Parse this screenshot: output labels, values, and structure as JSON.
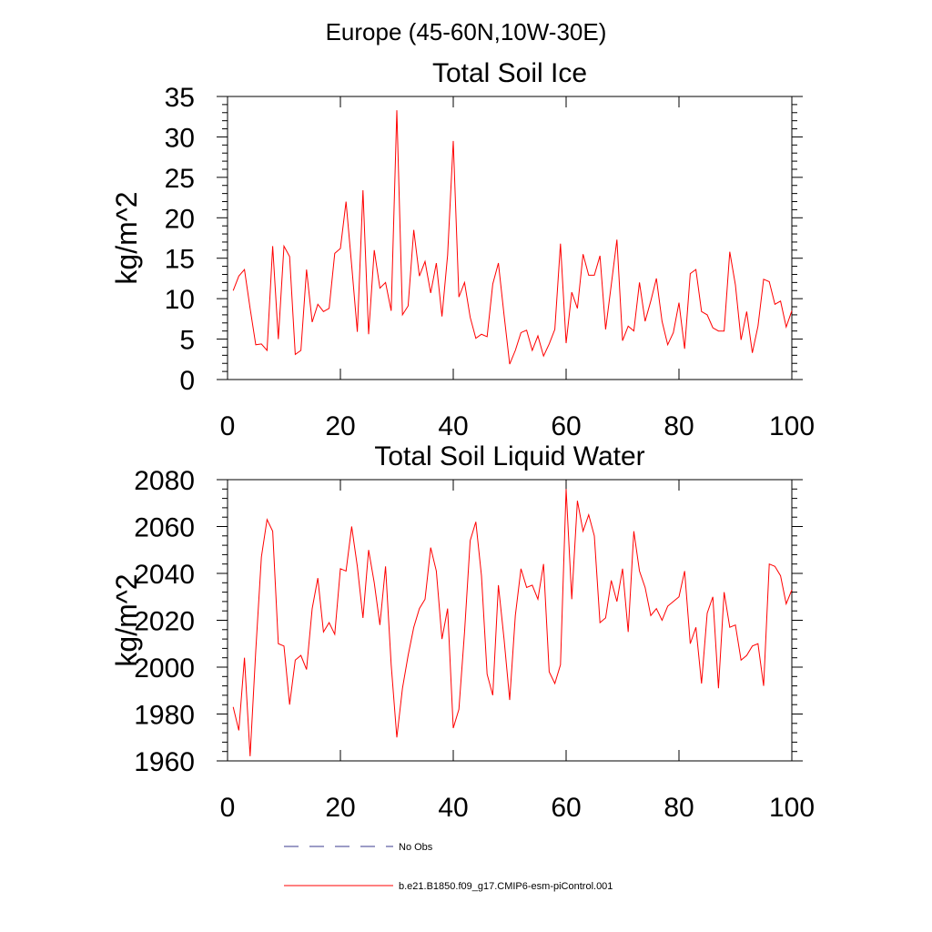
{
  "figure": {
    "suptitle": "Europe (45-60N,10W-30E)"
  },
  "colors": {
    "model": "#ff0000",
    "obs": "#3a3a8c",
    "axis": "#000000"
  },
  "legend": [
    {
      "label": "No Obs",
      "style": "dashed",
      "color": "#3a3a8c"
    },
    {
      "label": "b.e21.B1850.f09_g17.CMIP6-esm-piControl.001",
      "style": "solid",
      "color": "#ff0000"
    }
  ],
  "chart_data": [
    {
      "type": "line",
      "title": "Total Soil Ice",
      "xlabel": "",
      "ylabel": "kg/m^2",
      "xlim": [
        0,
        100
      ],
      "ylim": [
        0,
        35
      ],
      "xticks": [
        0,
        20,
        40,
        60,
        80,
        100
      ],
      "yticks": [
        0,
        5,
        10,
        15,
        20,
        25,
        30,
        35
      ],
      "series": [
        {
          "name": "b.e21.B1850.f09_g17.CMIP6-esm-piControl.001",
          "x": [
            1,
            2,
            3,
            4,
            5,
            6,
            7,
            8,
            9,
            10,
            11,
            12,
            13,
            14,
            15,
            16,
            17,
            18,
            19,
            20,
            21,
            22,
            23,
            24,
            25,
            26,
            27,
            28,
            29,
            30,
            31,
            32,
            33,
            34,
            35,
            36,
            37,
            38,
            39,
            40,
            41,
            42,
            43,
            44,
            45,
            46,
            47,
            48,
            49,
            50,
            51,
            52,
            53,
            54,
            55,
            56,
            57,
            58,
            59,
            60,
            61,
            62,
            63,
            64,
            65,
            66,
            67,
            68,
            69,
            70,
            71,
            72,
            73,
            74,
            75,
            76,
            77,
            78,
            79,
            80,
            81,
            82,
            83,
            84,
            85,
            86,
            87,
            88,
            89,
            90,
            91,
            92,
            93,
            94,
            95,
            96,
            97,
            98,
            99,
            100
          ],
          "values": [
            11.0,
            12.8,
            13.6,
            8.8,
            4.3,
            4.4,
            3.6,
            16.5,
            5.0,
            16.5,
            15.2,
            3.1,
            3.6,
            13.6,
            7.1,
            9.3,
            8.4,
            8.8,
            15.6,
            16.2,
            22.0,
            14.1,
            5.9,
            23.4,
            5.6,
            16.0,
            11.3,
            12.0,
            8.5,
            33.3,
            8.0,
            9.1,
            18.5,
            12.8,
            14.6,
            10.7,
            14.4,
            7.8,
            15.4,
            29.5,
            10.2,
            12.0,
            7.7,
            5.1,
            5.6,
            5.3,
            11.8,
            14.4,
            8.0,
            1.9,
            3.6,
            5.8,
            6.1,
            3.6,
            5.4,
            2.9,
            4.4,
            6.2,
            16.8,
            4.5,
            10.8,
            8.8,
            15.5,
            12.9,
            12.9,
            15.3,
            6.2,
            11.7,
            17.3,
            4.8,
            6.6,
            6.0,
            12.0,
            7.2,
            9.7,
            12.5,
            7.2,
            4.3,
            5.8,
            9.5,
            3.8,
            13.1,
            13.6,
            8.4,
            8.0,
            6.4,
            6.0,
            6.0,
            15.8,
            11.7,
            4.9,
            8.4,
            3.3,
            6.6,
            12.4,
            12.1,
            9.3,
            9.7,
            6.5,
            8.5
          ]
        }
      ]
    },
    {
      "type": "line",
      "title": "Total Soil Liquid Water",
      "xlabel": "",
      "ylabel": "kg/m^2",
      "xlim": [
        0,
        100
      ],
      "ylim": [
        1960,
        2080
      ],
      "xticks": [
        0,
        20,
        40,
        60,
        80,
        100
      ],
      "yticks": [
        1960,
        1980,
        2000,
        2020,
        2040,
        2060,
        2080
      ],
      "series": [
        {
          "name": "b.e21.B1850.f09_g17.CMIP6-esm-piControl.001",
          "x": [
            1,
            2,
            3,
            4,
            5,
            6,
            7,
            8,
            9,
            10,
            11,
            12,
            13,
            14,
            15,
            16,
            17,
            18,
            19,
            20,
            21,
            22,
            23,
            24,
            25,
            26,
            27,
            28,
            29,
            30,
            31,
            32,
            33,
            34,
            35,
            36,
            37,
            38,
            39,
            40,
            41,
            42,
            43,
            44,
            45,
            46,
            47,
            48,
            49,
            50,
            51,
            52,
            53,
            54,
            55,
            56,
            57,
            58,
            59,
            60,
            61,
            62,
            63,
            64,
            65,
            66,
            67,
            68,
            69,
            70,
            71,
            72,
            73,
            74,
            75,
            76,
            77,
            78,
            79,
            80,
            81,
            82,
            83,
            84,
            85,
            86,
            87,
            88,
            89,
            90,
            91,
            92,
            93,
            94,
            95,
            96,
            97,
            98,
            99,
            100
          ],
          "values": [
            1983,
            1973,
            2004,
            1962,
            2007,
            2047,
            2063,
            2058,
            2010,
            2009,
            1984,
            2003,
            2005,
            1999,
            2025,
            2038,
            2015,
            2019,
            2014,
            2042,
            2041,
            2060,
            2043,
            2021,
            2050,
            2036,
            2018,
            2043,
            2001,
            1970,
            1991,
            2005,
            2017,
            2025,
            2029,
            2051,
            2041,
            2012,
            2025,
            1974,
            1982,
            2015,
            2054,
            2062,
            2039,
            1997,
            1988,
            2035,
            2012,
            1986,
            2022,
            2042,
            2034,
            2035,
            2029,
            2044,
            1998,
            1993,
            2001,
            2076,
            2029,
            2071,
            2058,
            2065,
            2056,
            2019,
            2021,
            2037,
            2028,
            2042,
            2015,
            2058,
            2041,
            2034,
            2022,
            2025,
            2020,
            2026,
            2028,
            2030,
            2041,
            2010,
            2017,
            1993,
            2023,
            2030,
            1991,
            2032,
            2017,
            2018,
            2003,
            2005,
            2009,
            2010,
            1992,
            2044,
            2043,
            2039,
            2027,
            2033
          ]
        }
      ]
    }
  ]
}
